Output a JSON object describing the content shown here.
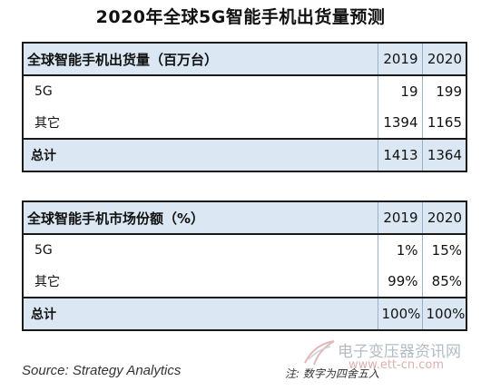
{
  "title": "2020年全球5G智能手机出货量预测",
  "chart_data": [
    {
      "type": "table",
      "header": "全球智能手机出货量（百万台）",
      "columns": [
        "2019",
        "2020"
      ],
      "rows": [
        {
          "label": "5G",
          "values": [
            "19",
            "199"
          ]
        },
        {
          "label": "其它",
          "values": [
            "1394",
            "1165"
          ]
        }
      ],
      "total": {
        "label": "总计",
        "values": [
          "1413",
          "1364"
        ]
      }
    },
    {
      "type": "table",
      "header": "全球智能手机市场份额（%）",
      "columns": [
        "2019",
        "2020"
      ],
      "rows": [
        {
          "label": "5G",
          "values": [
            "1%",
            "15%"
          ]
        },
        {
          "label": "其它",
          "values": [
            "99%",
            "85%"
          ]
        }
      ],
      "total": {
        "label": "总计",
        "values": [
          "100%",
          "100%"
        ]
      }
    }
  ],
  "footer": {
    "source": "Source: Strategy Analytics",
    "note": "注:  数字为四舍五入"
  },
  "watermark": {
    "text": "电子变压器资讯网",
    "url": "www.ett-cn.com",
    "logo_icon": "swoosh-logo-icon"
  }
}
